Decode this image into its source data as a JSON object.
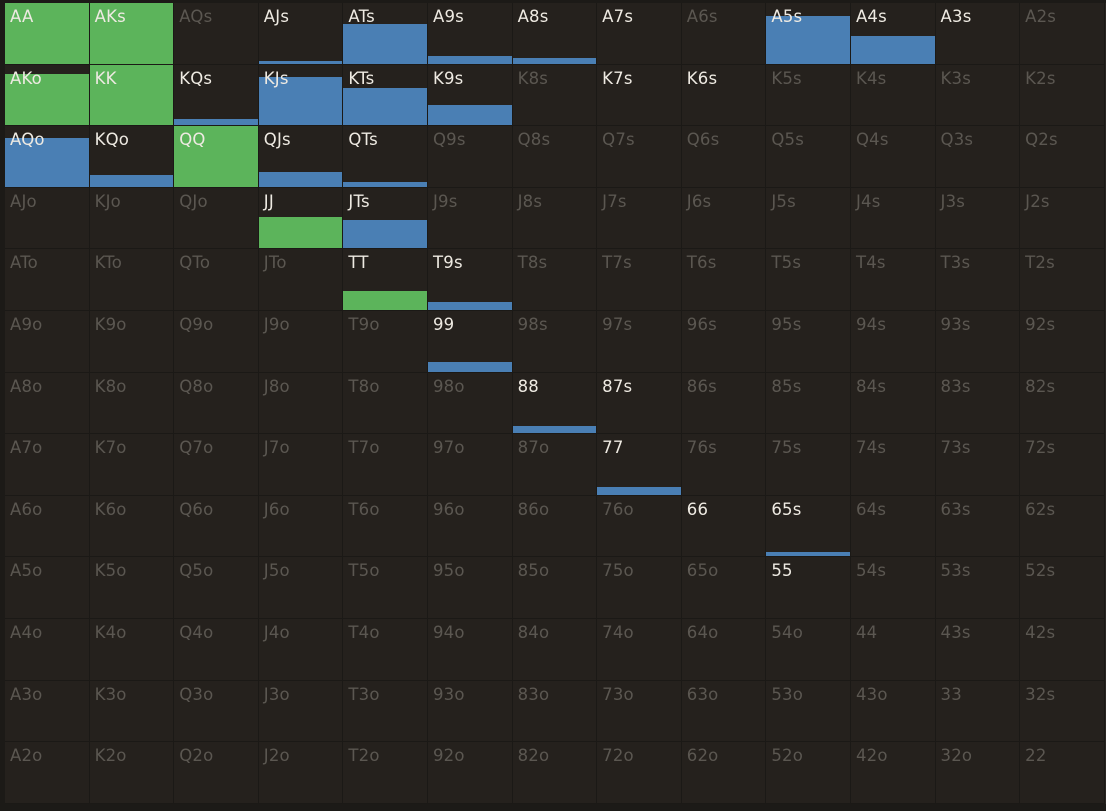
{
  "colors": {
    "background": "#1c1a17",
    "cell": "#25211d",
    "green": "#5cb45b",
    "blue": "#4a7fb4",
    "active_text": "#eeeae2",
    "inactive_text": "#5b5751"
  },
  "rows": [
    [
      {
        "label": "AA",
        "active": true,
        "fill": 1.0,
        "color": "green"
      },
      {
        "label": "AKs",
        "active": true,
        "fill": 1.0,
        "color": "green"
      },
      {
        "label": "AQs",
        "active": false,
        "fill": 0,
        "color": ""
      },
      {
        "label": "AJs",
        "active": true,
        "fill": 0.04,
        "color": "blue"
      },
      {
        "label": "ATs",
        "active": true,
        "fill": 0.66,
        "color": "blue"
      },
      {
        "label": "A9s",
        "active": true,
        "fill": 0.12,
        "color": "blue"
      },
      {
        "label": "A8s",
        "active": true,
        "fill": 0.1,
        "color": "blue"
      },
      {
        "label": "A7s",
        "active": true,
        "fill": 0,
        "color": ""
      },
      {
        "label": "A6s",
        "active": false,
        "fill": 0,
        "color": ""
      },
      {
        "label": "A5s",
        "active": true,
        "fill": 0.78,
        "color": "blue"
      },
      {
        "label": "A4s",
        "active": true,
        "fill": 0.45,
        "color": "blue"
      },
      {
        "label": "A3s",
        "active": true,
        "fill": 0,
        "color": ""
      },
      {
        "label": "A2s",
        "active": false,
        "fill": 0,
        "color": ""
      }
    ],
    [
      {
        "label": "AKo",
        "active": true,
        "fill": 0.85,
        "color": "green"
      },
      {
        "label": "KK",
        "active": true,
        "fill": 1.0,
        "color": "green"
      },
      {
        "label": "KQs",
        "active": true,
        "fill": 0.1,
        "color": "blue"
      },
      {
        "label": "KJs",
        "active": true,
        "fill": 0.8,
        "color": "blue"
      },
      {
        "label": "KTs",
        "active": true,
        "fill": 0.62,
        "color": "blue"
      },
      {
        "label": "K9s",
        "active": true,
        "fill": 0.34,
        "color": "blue"
      },
      {
        "label": "K8s",
        "active": false,
        "fill": 0,
        "color": ""
      },
      {
        "label": "K7s",
        "active": true,
        "fill": 0,
        "color": ""
      },
      {
        "label": "K6s",
        "active": true,
        "fill": 0,
        "color": ""
      },
      {
        "label": "K5s",
        "active": false,
        "fill": 0,
        "color": ""
      },
      {
        "label": "K4s",
        "active": false,
        "fill": 0,
        "color": ""
      },
      {
        "label": "K3s",
        "active": false,
        "fill": 0,
        "color": ""
      },
      {
        "label": "K2s",
        "active": false,
        "fill": 0,
        "color": ""
      }
    ],
    [
      {
        "label": "AQo",
        "active": true,
        "fill": 0.8,
        "color": "blue"
      },
      {
        "label": "KQo",
        "active": true,
        "fill": 0.2,
        "color": "blue"
      },
      {
        "label": "QQ",
        "active": true,
        "fill": 1.0,
        "color": "green"
      },
      {
        "label": "QJs",
        "active": true,
        "fill": 0.25,
        "color": "blue"
      },
      {
        "label": "QTs",
        "active": true,
        "fill": 0.08,
        "color": "blue"
      },
      {
        "label": "Q9s",
        "active": false,
        "fill": 0,
        "color": ""
      },
      {
        "label": "Q8s",
        "active": false,
        "fill": 0,
        "color": ""
      },
      {
        "label": "Q7s",
        "active": false,
        "fill": 0,
        "color": ""
      },
      {
        "label": "Q6s",
        "active": false,
        "fill": 0,
        "color": ""
      },
      {
        "label": "Q5s",
        "active": false,
        "fill": 0,
        "color": ""
      },
      {
        "label": "Q4s",
        "active": false,
        "fill": 0,
        "color": ""
      },
      {
        "label": "Q3s",
        "active": false,
        "fill": 0,
        "color": ""
      },
      {
        "label": "Q2s",
        "active": false,
        "fill": 0,
        "color": ""
      }
    ],
    [
      {
        "label": "AJo",
        "active": false,
        "fill": 0,
        "color": ""
      },
      {
        "label": "KJo",
        "active": false,
        "fill": 0,
        "color": ""
      },
      {
        "label": "QJo",
        "active": false,
        "fill": 0,
        "color": ""
      },
      {
        "label": "JJ",
        "active": true,
        "fill": 0.52,
        "color": "green"
      },
      {
        "label": "JTs",
        "active": true,
        "fill": 0.47,
        "color": "blue"
      },
      {
        "label": "J9s",
        "active": false,
        "fill": 0,
        "color": ""
      },
      {
        "label": "J8s",
        "active": false,
        "fill": 0,
        "color": ""
      },
      {
        "label": "J7s",
        "active": false,
        "fill": 0,
        "color": ""
      },
      {
        "label": "J6s",
        "active": false,
        "fill": 0,
        "color": ""
      },
      {
        "label": "J5s",
        "active": false,
        "fill": 0,
        "color": ""
      },
      {
        "label": "J4s",
        "active": false,
        "fill": 0,
        "color": ""
      },
      {
        "label": "J3s",
        "active": false,
        "fill": 0,
        "color": ""
      },
      {
        "label": "J2s",
        "active": false,
        "fill": 0,
        "color": ""
      }
    ],
    [
      {
        "label": "ATo",
        "active": false,
        "fill": 0,
        "color": ""
      },
      {
        "label": "KTo",
        "active": false,
        "fill": 0,
        "color": ""
      },
      {
        "label": "QTo",
        "active": false,
        "fill": 0,
        "color": ""
      },
      {
        "label": "JTo",
        "active": false,
        "fill": 0,
        "color": ""
      },
      {
        "label": "TT",
        "active": true,
        "fill": 0.31,
        "color": "green"
      },
      {
        "label": "T9s",
        "active": true,
        "fill": 0.13,
        "color": "blue"
      },
      {
        "label": "T8s",
        "active": false,
        "fill": 0,
        "color": ""
      },
      {
        "label": "T7s",
        "active": false,
        "fill": 0,
        "color": ""
      },
      {
        "label": "T6s",
        "active": false,
        "fill": 0,
        "color": ""
      },
      {
        "label": "T5s",
        "active": false,
        "fill": 0,
        "color": ""
      },
      {
        "label": "T4s",
        "active": false,
        "fill": 0,
        "color": ""
      },
      {
        "label": "T3s",
        "active": false,
        "fill": 0,
        "color": ""
      },
      {
        "label": "T2s",
        "active": false,
        "fill": 0,
        "color": ""
      }
    ],
    [
      {
        "label": "A9o",
        "active": false,
        "fill": 0,
        "color": ""
      },
      {
        "label": "K9o",
        "active": false,
        "fill": 0,
        "color": ""
      },
      {
        "label": "Q9o",
        "active": false,
        "fill": 0,
        "color": ""
      },
      {
        "label": "J9o",
        "active": false,
        "fill": 0,
        "color": ""
      },
      {
        "label": "T9o",
        "active": false,
        "fill": 0,
        "color": ""
      },
      {
        "label": "99",
        "active": true,
        "fill": 0.15,
        "color": "blue"
      },
      {
        "label": "98s",
        "active": false,
        "fill": 0,
        "color": ""
      },
      {
        "label": "97s",
        "active": false,
        "fill": 0,
        "color": ""
      },
      {
        "label": "96s",
        "active": false,
        "fill": 0,
        "color": ""
      },
      {
        "label": "95s",
        "active": false,
        "fill": 0,
        "color": ""
      },
      {
        "label": "94s",
        "active": false,
        "fill": 0,
        "color": ""
      },
      {
        "label": "93s",
        "active": false,
        "fill": 0,
        "color": ""
      },
      {
        "label": "92s",
        "active": false,
        "fill": 0,
        "color": ""
      }
    ],
    [
      {
        "label": "A8o",
        "active": false,
        "fill": 0,
        "color": ""
      },
      {
        "label": "K8o",
        "active": false,
        "fill": 0,
        "color": ""
      },
      {
        "label": "Q8o",
        "active": false,
        "fill": 0,
        "color": ""
      },
      {
        "label": "J8o",
        "active": false,
        "fill": 0,
        "color": ""
      },
      {
        "label": "T8o",
        "active": false,
        "fill": 0,
        "color": ""
      },
      {
        "label": "98o",
        "active": false,
        "fill": 0,
        "color": ""
      },
      {
        "label": "88",
        "active": true,
        "fill": 0.12,
        "color": "blue"
      },
      {
        "label": "87s",
        "active": true,
        "fill": 0,
        "color": ""
      },
      {
        "label": "86s",
        "active": false,
        "fill": 0,
        "color": ""
      },
      {
        "label": "85s",
        "active": false,
        "fill": 0,
        "color": ""
      },
      {
        "label": "84s",
        "active": false,
        "fill": 0,
        "color": ""
      },
      {
        "label": "83s",
        "active": false,
        "fill": 0,
        "color": ""
      },
      {
        "label": "82s",
        "active": false,
        "fill": 0,
        "color": ""
      }
    ],
    [
      {
        "label": "A7o",
        "active": false,
        "fill": 0,
        "color": ""
      },
      {
        "label": "K7o",
        "active": false,
        "fill": 0,
        "color": ""
      },
      {
        "label": "Q7o",
        "active": false,
        "fill": 0,
        "color": ""
      },
      {
        "label": "J7o",
        "active": false,
        "fill": 0,
        "color": ""
      },
      {
        "label": "T7o",
        "active": false,
        "fill": 0,
        "color": ""
      },
      {
        "label": "97o",
        "active": false,
        "fill": 0,
        "color": ""
      },
      {
        "label": "87o",
        "active": false,
        "fill": 0,
        "color": ""
      },
      {
        "label": "77",
        "active": true,
        "fill": 0.12,
        "color": "blue"
      },
      {
        "label": "76s",
        "active": false,
        "fill": 0,
        "color": ""
      },
      {
        "label": "75s",
        "active": false,
        "fill": 0,
        "color": ""
      },
      {
        "label": "74s",
        "active": false,
        "fill": 0,
        "color": ""
      },
      {
        "label": "73s",
        "active": false,
        "fill": 0,
        "color": ""
      },
      {
        "label": "72s",
        "active": false,
        "fill": 0,
        "color": ""
      }
    ],
    [
      {
        "label": "A6o",
        "active": false,
        "fill": 0,
        "color": ""
      },
      {
        "label": "K6o",
        "active": false,
        "fill": 0,
        "color": ""
      },
      {
        "label": "Q6o",
        "active": false,
        "fill": 0,
        "color": ""
      },
      {
        "label": "J6o",
        "active": false,
        "fill": 0,
        "color": ""
      },
      {
        "label": "T6o",
        "active": false,
        "fill": 0,
        "color": ""
      },
      {
        "label": "96o",
        "active": false,
        "fill": 0,
        "color": ""
      },
      {
        "label": "86o",
        "active": false,
        "fill": 0,
        "color": ""
      },
      {
        "label": "76o",
        "active": false,
        "fill": 0,
        "color": ""
      },
      {
        "label": "66",
        "active": true,
        "fill": 0,
        "color": ""
      },
      {
        "label": "65s",
        "active": true,
        "fill": 0.08,
        "color": "blue"
      },
      {
        "label": "64s",
        "active": false,
        "fill": 0,
        "color": ""
      },
      {
        "label": "63s",
        "active": false,
        "fill": 0,
        "color": ""
      },
      {
        "label": "62s",
        "active": false,
        "fill": 0,
        "color": ""
      }
    ],
    [
      {
        "label": "A5o",
        "active": false,
        "fill": 0,
        "color": ""
      },
      {
        "label": "K5o",
        "active": false,
        "fill": 0,
        "color": ""
      },
      {
        "label": "Q5o",
        "active": false,
        "fill": 0,
        "color": ""
      },
      {
        "label": "J5o",
        "active": false,
        "fill": 0,
        "color": ""
      },
      {
        "label": "T5o",
        "active": false,
        "fill": 0,
        "color": ""
      },
      {
        "label": "95o",
        "active": false,
        "fill": 0,
        "color": ""
      },
      {
        "label": "85o",
        "active": false,
        "fill": 0,
        "color": ""
      },
      {
        "label": "75o",
        "active": false,
        "fill": 0,
        "color": ""
      },
      {
        "label": "65o",
        "active": false,
        "fill": 0,
        "color": ""
      },
      {
        "label": "55",
        "active": true,
        "fill": 0,
        "color": ""
      },
      {
        "label": "54s",
        "active": false,
        "fill": 0,
        "color": ""
      },
      {
        "label": "53s",
        "active": false,
        "fill": 0,
        "color": ""
      },
      {
        "label": "52s",
        "active": false,
        "fill": 0,
        "color": ""
      }
    ],
    [
      {
        "label": "A4o",
        "active": false,
        "fill": 0,
        "color": ""
      },
      {
        "label": "K4o",
        "active": false,
        "fill": 0,
        "color": ""
      },
      {
        "label": "Q4o",
        "active": false,
        "fill": 0,
        "color": ""
      },
      {
        "label": "J4o",
        "active": false,
        "fill": 0,
        "color": ""
      },
      {
        "label": "T4o",
        "active": false,
        "fill": 0,
        "color": ""
      },
      {
        "label": "94o",
        "active": false,
        "fill": 0,
        "color": ""
      },
      {
        "label": "84o",
        "active": false,
        "fill": 0,
        "color": ""
      },
      {
        "label": "74o",
        "active": false,
        "fill": 0,
        "color": ""
      },
      {
        "label": "64o",
        "active": false,
        "fill": 0,
        "color": ""
      },
      {
        "label": "54o",
        "active": false,
        "fill": 0,
        "color": ""
      },
      {
        "label": "44",
        "active": false,
        "fill": 0,
        "color": ""
      },
      {
        "label": "43s",
        "active": false,
        "fill": 0,
        "color": ""
      },
      {
        "label": "42s",
        "active": false,
        "fill": 0,
        "color": ""
      }
    ],
    [
      {
        "label": "A3o",
        "active": false,
        "fill": 0,
        "color": ""
      },
      {
        "label": "K3o",
        "active": false,
        "fill": 0,
        "color": ""
      },
      {
        "label": "Q3o",
        "active": false,
        "fill": 0,
        "color": ""
      },
      {
        "label": "J3o",
        "active": false,
        "fill": 0,
        "color": ""
      },
      {
        "label": "T3o",
        "active": false,
        "fill": 0,
        "color": ""
      },
      {
        "label": "93o",
        "active": false,
        "fill": 0,
        "color": ""
      },
      {
        "label": "83o",
        "active": false,
        "fill": 0,
        "color": ""
      },
      {
        "label": "73o",
        "active": false,
        "fill": 0,
        "color": ""
      },
      {
        "label": "63o",
        "active": false,
        "fill": 0,
        "color": ""
      },
      {
        "label": "53o",
        "active": false,
        "fill": 0,
        "color": ""
      },
      {
        "label": "43o",
        "active": false,
        "fill": 0,
        "color": ""
      },
      {
        "label": "33",
        "active": false,
        "fill": 0,
        "color": ""
      },
      {
        "label": "32s",
        "active": false,
        "fill": 0,
        "color": ""
      }
    ],
    [
      {
        "label": "A2o",
        "active": false,
        "fill": 0,
        "color": ""
      },
      {
        "label": "K2o",
        "active": false,
        "fill": 0,
        "color": ""
      },
      {
        "label": "Q2o",
        "active": false,
        "fill": 0,
        "color": ""
      },
      {
        "label": "J2o",
        "active": false,
        "fill": 0,
        "color": ""
      },
      {
        "label": "T2o",
        "active": false,
        "fill": 0,
        "color": ""
      },
      {
        "label": "92o",
        "active": false,
        "fill": 0,
        "color": ""
      },
      {
        "label": "82o",
        "active": false,
        "fill": 0,
        "color": ""
      },
      {
        "label": "72o",
        "active": false,
        "fill": 0,
        "color": ""
      },
      {
        "label": "62o",
        "active": false,
        "fill": 0,
        "color": ""
      },
      {
        "label": "52o",
        "active": false,
        "fill": 0,
        "color": ""
      },
      {
        "label": "42o",
        "active": false,
        "fill": 0,
        "color": ""
      },
      {
        "label": "32o",
        "active": false,
        "fill": 0,
        "color": ""
      },
      {
        "label": "22",
        "active": false,
        "fill": 0,
        "color": ""
      }
    ]
  ]
}
